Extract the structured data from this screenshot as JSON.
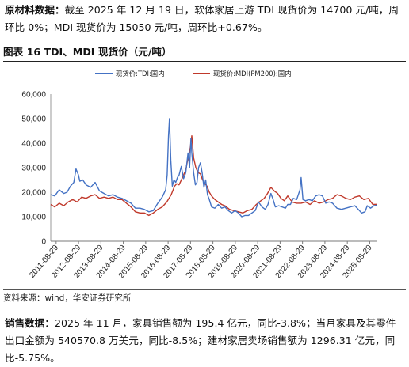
{
  "intro": {
    "label": "原材料数据：",
    "text": "截至 2025 年 12 月 19 日，软体家居上游 TDI 现货价为 14700 元/吨，周环比 0%；MDI 现货价为 15050 元/吨，周环比+0.67%。"
  },
  "figure": {
    "title": "图表 16 TDI、MDI 现货价（元/吨）",
    "source": "资料来源：wind，华安证券研究所"
  },
  "sales": {
    "label": "销售数据：",
    "text": "2025 年 11 月，家具销售额为 195.4 亿元，同比-3.8%；当月家具及其零件出口金额为 540570.8 万美元，同比-8.5%；建材家居卖场销售额为 1296.31 亿元，同比-5.75%。"
  },
  "chart_data": {
    "type": "line",
    "title": "",
    "xlabel": "",
    "ylabel": "",
    "ylim": [
      0,
      60000
    ],
    "yticks": [
      0,
      10000,
      20000,
      30000,
      40000,
      50000,
      60000
    ],
    "ytick_labels": [
      "0",
      "10,000",
      "20,000",
      "30,000",
      "40,000",
      "50,000",
      "60,000"
    ],
    "xlim": [
      2011.42,
      2026.0
    ],
    "xtick_labels": [
      "2011-08-29",
      "2012-08-29",
      "2013-08-29",
      "2014-08-29",
      "2015-08-29",
      "2016-08-29",
      "2017-08-29",
      "2018-08-29",
      "2019-08-29",
      "2020-08-29",
      "2021-08-29",
      "2022-08-29",
      "2023-08-29",
      "2024-08-29",
      "2025-08-29"
    ],
    "grid": false,
    "legend_position": "top",
    "series": [
      {
        "name": "现货价:TDI:国内",
        "color": "#4472C4",
        "x": [
          2011.42,
          2011.6,
          2011.8,
          2012.0,
          2012.15,
          2012.3,
          2012.45,
          2012.55,
          2012.66,
          2012.72,
          2012.85,
          2013.0,
          2013.2,
          2013.4,
          2013.6,
          2013.8,
          2014.0,
          2014.2,
          2014.4,
          2014.6,
          2014.8,
          2015.0,
          2015.2,
          2015.4,
          2015.6,
          2015.8,
          2016.0,
          2016.2,
          2016.4,
          2016.55,
          2016.62,
          2016.68,
          2016.72,
          2016.78,
          2016.85,
          2016.92,
          2017.0,
          2017.08,
          2017.15,
          2017.25,
          2017.35,
          2017.45,
          2017.55,
          2017.62,
          2017.68,
          2017.72,
          2017.8,
          2017.88,
          2017.95,
          2018.02,
          2018.1,
          2018.18,
          2018.26,
          2018.34,
          2018.42,
          2018.5,
          2018.6,
          2018.75,
          2018.9,
          2019.05,
          2019.2,
          2019.35,
          2019.5,
          2019.65,
          2019.8,
          2019.95,
          2020.1,
          2020.25,
          2020.4,
          2020.55,
          2020.7,
          2020.85,
          2021.0,
          2021.12,
          2021.25,
          2021.35,
          2021.45,
          2021.6,
          2021.75,
          2021.9,
          2022.0,
          2022.12,
          2022.25,
          2022.4,
          2022.55,
          2022.6,
          2022.68,
          2022.8,
          2022.95,
          2023.1,
          2023.25,
          2023.4,
          2023.55,
          2023.7,
          2023.85,
          2024.0,
          2024.2,
          2024.4,
          2024.6,
          2024.8,
          2025.0,
          2025.15,
          2025.3,
          2025.45,
          2025.55,
          2025.7,
          2025.85,
          2025.97
        ],
        "y": [
          19000,
          18500,
          21000,
          19500,
          20000,
          22500,
          24000,
          29500,
          27000,
          24500,
          25000,
          23000,
          22000,
          24000,
          20500,
          19500,
          18500,
          19000,
          18000,
          17500,
          16500,
          15500,
          13500,
          13500,
          13000,
          12000,
          12500,
          15500,
          18000,
          21000,
          27000,
          43000,
          50000,
          33000,
          22500,
          25000,
          24000,
          26000,
          27000,
          30500,
          25500,
          28000,
          36000,
          30000,
          42000,
          36000,
          28000,
          23000,
          24000,
          30000,
          32000,
          28000,
          22000,
          25000,
          19000,
          17000,
          14000,
          13500,
          15000,
          13500,
          14000,
          12500,
          11500,
          12500,
          11500,
          10000,
          10500,
          10500,
          11500,
          12500,
          16000,
          14000,
          13000,
          15000,
          19500,
          17000,
          14000,
          14500,
          14000,
          13500,
          15000,
          15000,
          17500,
          17000,
          21000,
          26000,
          17000,
          16500,
          17000,
          16500,
          18500,
          19000,
          18500,
          15500,
          16000,
          15500,
          13500,
          13000,
          13500,
          14000,
          14500,
          13000,
          11500,
          12000,
          14500,
          13500,
          14500,
          14700
        ]
      },
      {
        "name": "现货价:MDI(PM200):国内",
        "color": "#C0392B",
        "x": [
          2011.42,
          2011.6,
          2011.8,
          2012.0,
          2012.2,
          2012.4,
          2012.6,
          2012.8,
          2013.0,
          2013.2,
          2013.4,
          2013.6,
          2013.8,
          2014.0,
          2014.2,
          2014.4,
          2014.6,
          2014.8,
          2015.0,
          2015.2,
          2015.4,
          2015.6,
          2015.8,
          2016.0,
          2016.2,
          2016.4,
          2016.6,
          2016.8,
          2016.95,
          2017.05,
          2017.15,
          2017.3,
          2017.45,
          2017.55,
          2017.65,
          2017.72,
          2017.8,
          2017.9,
          2018.0,
          2018.1,
          2018.2,
          2018.3,
          2018.4,
          2018.5,
          2018.6,
          2018.75,
          2018.9,
          2019.05,
          2019.2,
          2019.4,
          2019.6,
          2019.8,
          2020.0,
          2020.2,
          2020.4,
          2020.6,
          2020.8,
          2020.95,
          2021.1,
          2021.25,
          2021.4,
          2021.55,
          2021.7,
          2021.85,
          2022.0,
          2022.2,
          2022.4,
          2022.6,
          2022.8,
          2023.0,
          2023.2,
          2023.4,
          2023.6,
          2023.8,
          2024.0,
          2024.2,
          2024.4,
          2024.6,
          2024.8,
          2025.0,
          2025.2,
          2025.4,
          2025.6,
          2025.8,
          2025.97
        ],
        "y": [
          15000,
          14000,
          15500,
          14500,
          16000,
          17000,
          16000,
          18000,
          17500,
          18500,
          19000,
          17500,
          18000,
          17500,
          18000,
          17000,
          17000,
          15500,
          14000,
          12000,
          11500,
          11500,
          10500,
          11500,
          13000,
          14000,
          16000,
          19000,
          22500,
          23500,
          23000,
          26000,
          29000,
          34000,
          38000,
          43000,
          34000,
          30000,
          28000,
          27500,
          25000,
          23500,
          22500,
          20000,
          18500,
          17000,
          16000,
          15000,
          14500,
          13000,
          12500,
          12000,
          11500,
          12500,
          13000,
          15000,
          16500,
          17500,
          19500,
          22000,
          20500,
          19500,
          17500,
          16500,
          18500,
          16000,
          15500,
          15500,
          16000,
          15000,
          16500,
          15500,
          16000,
          17000,
          17500,
          19000,
          18500,
          17500,
          17000,
          18000,
          18500,
          17000,
          17500,
          15000,
          15050
        ]
      }
    ]
  }
}
